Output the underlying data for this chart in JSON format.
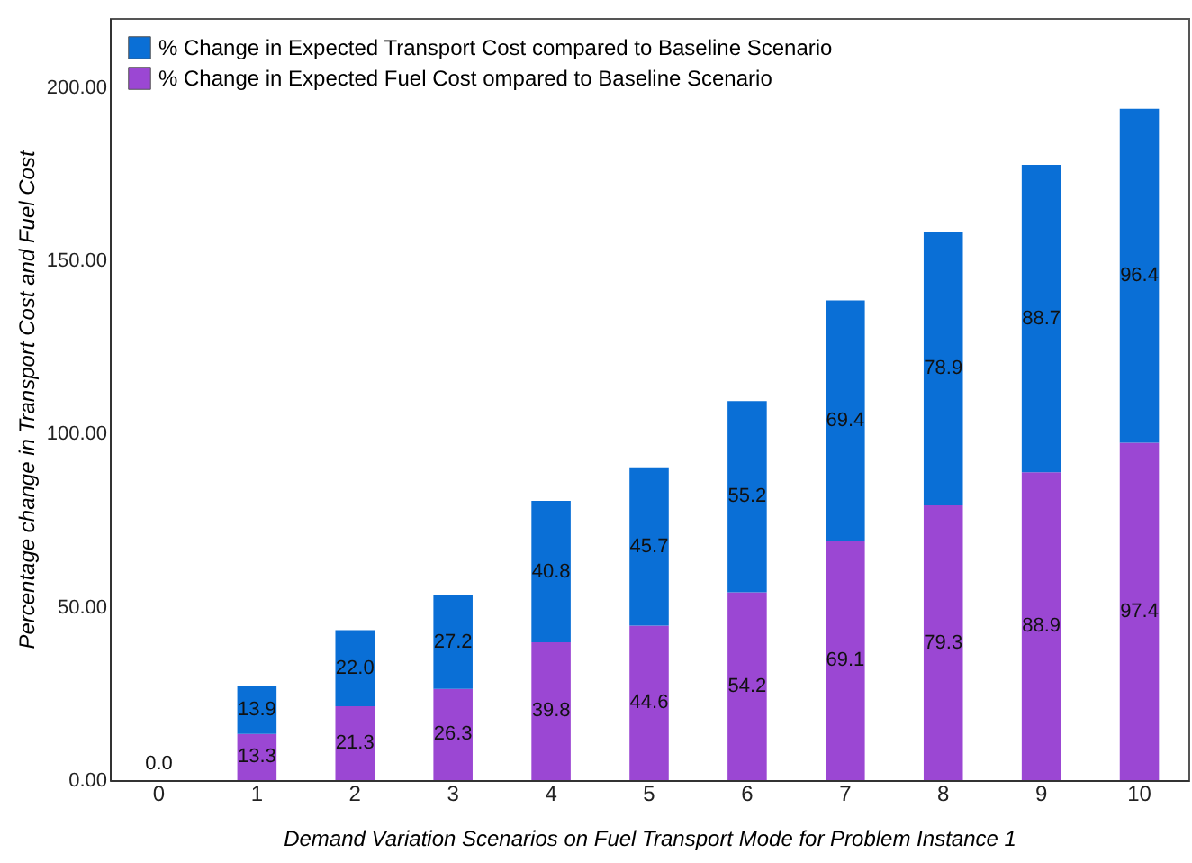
{
  "chart_data": {
    "type": "bar",
    "stacked": true,
    "xlabel": "Demand Variation Scenarios on Fuel Transport Mode for Problem Instance 1",
    "ylabel": "Percentage change in Transport Cost and Fuel Cost",
    "categories": [
      "0",
      "1",
      "2",
      "3",
      "4",
      "5",
      "6",
      "7",
      "8",
      "9",
      "10"
    ],
    "series": [
      {
        "name": "% Change in Expected Fuel Cost ompared to Baseline Scenario",
        "color": "#9b47d3",
        "values": [
          0,
          13.3,
          21.3,
          26.3,
          39.8,
          44.6,
          54.2,
          69.1,
          79.3,
          88.9,
          97.4
        ],
        "value_labels": [
          null,
          "13.3",
          "21.3",
          "26.3",
          "39.8",
          "44.6",
          "54.2",
          "69.1",
          "79.3",
          "88.9",
          "97.4"
        ]
      },
      {
        "name": "% Change in Expected Transport Cost compared to Baseline Scenario",
        "color": "#0a6fd6",
        "values": [
          0,
          13.9,
          22.0,
          27.2,
          40.8,
          45.7,
          55.2,
          69.4,
          78.9,
          88.7,
          96.4
        ],
        "value_labels": [
          "0.0",
          "13.9",
          "22.0",
          "27.2",
          "40.8",
          "45.7",
          "55.2",
          "69.4",
          "78.9",
          "88.7",
          "96.4"
        ]
      }
    ],
    "ylim": [
      0,
      220
    ],
    "yticks": [
      {
        "value": 0,
        "label": "0.00"
      },
      {
        "value": 50,
        "label": "50.00"
      },
      {
        "value": 100,
        "label": "100.00"
      },
      {
        "value": 150,
        "label": "150.00"
      },
      {
        "value": 200,
        "label": "200.00"
      }
    ],
    "grid": false,
    "legend": "top left"
  }
}
